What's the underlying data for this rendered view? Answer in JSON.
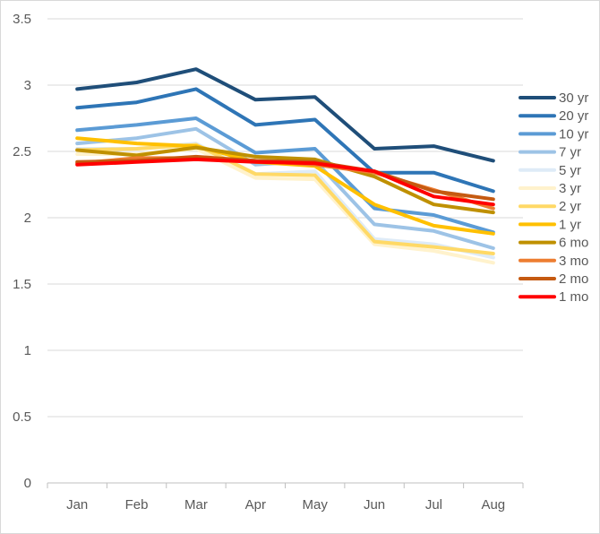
{
  "chart_data": {
    "type": "line",
    "title": "",
    "xlabel": "",
    "ylabel": "",
    "categories": [
      "Jan",
      "Feb",
      "Mar",
      "Apr",
      "May",
      "Jun",
      "Jul",
      "Aug"
    ],
    "ylim": [
      0,
      3.5
    ],
    "yticks": [
      "0",
      "0.5",
      "1",
      "1.5",
      "2",
      "2.5",
      "3",
      "3.5"
    ],
    "grid": true,
    "legend": "right",
    "series": [
      {
        "name": "30 yr",
        "color": "#1f4e79",
        "values": [
          2.97,
          3.02,
          3.12,
          2.89,
          2.91,
          2.52,
          2.54,
          2.43
        ]
      },
      {
        "name": "20 yr",
        "color": "#2e75b6",
        "values": [
          2.83,
          2.87,
          2.97,
          2.7,
          2.74,
          2.34,
          2.34,
          2.2
        ]
      },
      {
        "name": "10 yr",
        "color": "#5b9bd5",
        "values": [
          2.66,
          2.7,
          2.75,
          2.49,
          2.52,
          2.07,
          2.02,
          1.89
        ]
      },
      {
        "name": "7 yr",
        "color": "#9dc3e6",
        "values": [
          2.56,
          2.6,
          2.67,
          2.4,
          2.43,
          1.95,
          1.9,
          1.77
        ]
      },
      {
        "name": "5 yr",
        "color": "#deebf7",
        "values": [
          2.52,
          2.52,
          2.56,
          2.33,
          2.35,
          1.84,
          1.8,
          1.7
        ]
      },
      {
        "name": "3 yr",
        "color": "#fff2cc",
        "values": [
          2.48,
          2.48,
          2.52,
          2.3,
          2.29,
          1.8,
          1.75,
          1.66
        ]
      },
      {
        "name": "2 yr",
        "color": "#ffd966",
        "values": [
          2.51,
          2.52,
          2.55,
          2.33,
          2.32,
          1.82,
          1.78,
          1.73
        ]
      },
      {
        "name": "1 yr",
        "color": "#ffc000",
        "values": [
          2.6,
          2.56,
          2.54,
          2.42,
          2.39,
          2.1,
          1.94,
          1.88
        ]
      },
      {
        "name": "6 mo",
        "color": "#bf9000",
        "values": [
          2.51,
          2.47,
          2.53,
          2.46,
          2.44,
          2.31,
          2.1,
          2.04
        ]
      },
      {
        "name": "3 mo",
        "color": "#ed7d31",
        "values": [
          2.41,
          2.45,
          2.45,
          2.43,
          2.4,
          2.34,
          2.21,
          2.07
        ]
      },
      {
        "name": "2 mo",
        "color": "#c55a11",
        "values": [
          2.42,
          2.43,
          2.46,
          2.43,
          2.42,
          2.35,
          2.2,
          2.14
        ]
      },
      {
        "name": "1 mo",
        "color": "#ff0000",
        "values": [
          2.4,
          2.42,
          2.44,
          2.42,
          2.41,
          2.35,
          2.16,
          2.1
        ]
      }
    ]
  }
}
